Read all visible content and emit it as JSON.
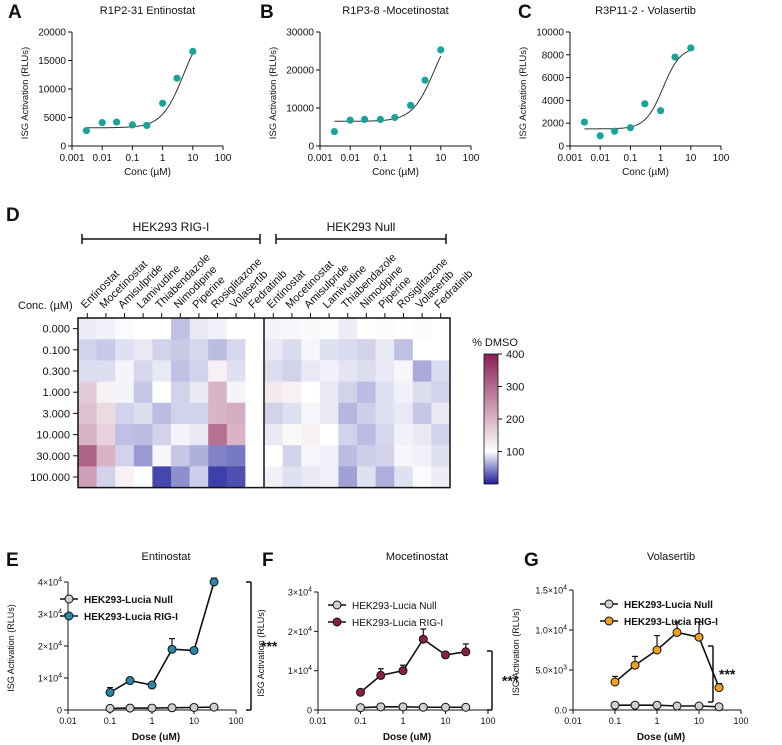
{
  "chart_data": [
    {
      "id": "A",
      "panel_letter": "A",
      "type": "scatter",
      "title": "R1P2-31 Entinostat",
      "xlabel": "Conc (µM)",
      "ylabel": "ISG Activation (RLUs)",
      "xscale": "log",
      "xlim": [
        0.001,
        100
      ],
      "ylim": [
        0,
        20000
      ],
      "xticks": [
        0.001,
        0.01,
        0.1,
        1,
        10,
        100
      ],
      "xtick_labels": [
        "0.001",
        "0.01",
        "0.1",
        "1",
        "10",
        "100"
      ],
      "yticks": [
        0,
        5000,
        10000,
        15000,
        20000
      ],
      "ytick_labels": [
        "0",
        "5000",
        "10000",
        "15000",
        "20000"
      ],
      "point_color": "#1aa39a",
      "fit": "sigmoid",
      "x": [
        0.003,
        0.01,
        0.03,
        0.1,
        0.3,
        1,
        3,
        10
      ],
      "y": [
        2700,
        4100,
        4200,
        3700,
        3600,
        7500,
        11900,
        16600
      ],
      "fit_params": {
        "bottom": 3200,
        "top": 22000,
        "ec50": 5,
        "hill": 1.2
      }
    },
    {
      "id": "B",
      "panel_letter": "B",
      "type": "scatter",
      "title": "R1P3-8 -Mocetinostat",
      "xlabel": "Conc (µM)",
      "ylabel": "ISG Activation (RLUs)",
      "xscale": "log",
      "xlim": [
        0.001,
        100
      ],
      "ylim": [
        0,
        30000
      ],
      "xticks": [
        0.001,
        0.01,
        0.1,
        1,
        10,
        100
      ],
      "xtick_labels": [
        "0.001",
        "0.01",
        "0.1",
        "1",
        "10",
        "100"
      ],
      "yticks": [
        0,
        10000,
        20000,
        30000
      ],
      "ytick_labels": [
        "0",
        "10000",
        "20000",
        "30000"
      ],
      "point_color": "#1aa39a",
      "fit": "sigmoid",
      "x": [
        0.003,
        0.01,
        0.03,
        0.1,
        0.3,
        1,
        3,
        10
      ],
      "y": [
        3800,
        6800,
        7000,
        7000,
        7500,
        10700,
        17300,
        25300
      ],
      "fit_params": {
        "bottom": 6500,
        "top": 33000,
        "ec50": 6,
        "hill": 1.2
      }
    },
    {
      "id": "C",
      "panel_letter": "C",
      "type": "scatter",
      "title": "R3P11-2 - Volasertib",
      "xlabel": "Conc (µM)",
      "ylabel": "ISG Activation (RLUs)",
      "xscale": "log",
      "xlim": [
        0.001,
        100
      ],
      "ylim": [
        0,
        10000
      ],
      "xticks": [
        0.001,
        0.01,
        0.1,
        1,
        10,
        100
      ],
      "xtick_labels": [
        "0.001",
        "0.01",
        "0.1",
        "1",
        "10",
        "100"
      ],
      "yticks": [
        0,
        2000,
        4000,
        6000,
        8000,
        10000
      ],
      "ytick_labels": [
        "0",
        "2000",
        "4000",
        "6000",
        "8000",
        "10000"
      ],
      "point_color": "#1aa39a",
      "fit": "sigmoid",
      "x": [
        0.003,
        0.01,
        0.03,
        0.1,
        0.3,
        1,
        3,
        10
      ],
      "y": [
        2100,
        900,
        1300,
        1600,
        3700,
        3100,
        7800,
        8600
      ],
      "fit_params": {
        "bottom": 1500,
        "top": 8700,
        "ec50": 1.2,
        "hill": 1.5
      }
    },
    {
      "id": "D",
      "panel_letter": "D",
      "type": "heatmap",
      "group_left": "HEK293 RIG-I",
      "group_right": "HEK293 Null",
      "row_title": "Conc. (µM)",
      "rows": [
        "0.000",
        "0.100",
        "0.300",
        "1.000",
        "3.000",
        "10.000",
        "30.000",
        "100.000"
      ],
      "columns": [
        "Entinostat",
        "Mocetinostat",
        "Amisulpride",
        "Lamivudine",
        "Thiabendazole",
        "Nimodipine",
        "Piperine",
        "Rosiglitazone",
        "Volasertib",
        "Fedratinib"
      ],
      "colorbar_title": "% DMSO",
      "colorbar_ticks": [
        400,
        300,
        200,
        100
      ],
      "colorbar_range": [
        0,
        400
      ],
      "color_low": "#1c1e9a",
      "color_mid": "#ffffff",
      "color_high": "#8c1f55",
      "values_rig_i": [
        [
          92,
          94,
          98,
          100,
          100,
          72,
          90,
          94,
          100,
          100
        ],
        [
          80,
          76,
          86,
          90,
          80,
          76,
          82,
          70,
          82,
          100
        ],
        [
          85,
          85,
          95,
          82,
          90,
          72,
          80,
          120,
          86,
          100
        ],
        [
          170,
          120,
          95,
          75,
          100,
          80,
          90,
          200,
          95,
          100
        ],
        [
          180,
          150,
          80,
          85,
          70,
          80,
          80,
          200,
          210,
          100
        ],
        [
          200,
          160,
          72,
          70,
          80,
          95,
          90,
          290,
          200,
          100
        ],
        [
          310,
          200,
          80,
          55,
          96,
          75,
          65,
          45,
          40,
          100
        ],
        [
          230,
          80,
          120,
          100,
          18,
          50,
          78,
          15,
          22,
          100
        ]
      ],
      "values_null": [
        [
          95,
          96,
          110,
          98,
          92,
          100,
          98,
          100,
          98,
          100
        ],
        [
          90,
          84,
          96,
          86,
          84,
          80,
          90,
          72,
          100,
          100
        ],
        [
          85,
          80,
          90,
          94,
          88,
          85,
          90,
          96,
          62,
          84
        ],
        [
          130,
          120,
          100,
          90,
          80,
          70,
          86,
          94,
          85,
          80
        ],
        [
          80,
          86,
          96,
          90,
          68,
          78,
          86,
          90,
          75,
          90
        ],
        [
          90,
          110,
          120,
          100,
          80,
          70,
          82,
          94,
          90,
          80
        ],
        [
          100,
          80,
          96,
          94,
          70,
          78,
          80,
          96,
          94,
          86
        ],
        [
          94,
          86,
          90,
          94,
          58,
          86,
          64,
          86,
          98,
          92
        ]
      ]
    },
    {
      "id": "E",
      "panel_letter": "E",
      "type": "line",
      "title": "Entinostat",
      "xlabel": "Dose (uM)",
      "ylabel": "ISG Activation (RLUs)",
      "xscale": "log",
      "xlim": [
        0.01,
        100
      ],
      "ylim": [
        0,
        40000
      ],
      "xticks": [
        0.01,
        0.1,
        1,
        10,
        100
      ],
      "xtick_labels": [
        "0.01",
        "0.1",
        "1",
        "10",
        "100"
      ],
      "yticks": [
        0,
        10000,
        20000,
        30000,
        40000
      ],
      "ytick_labels": [
        {
          "mant": "0",
          "exp": ""
        },
        {
          "mant": "1×10",
          "exp": "4"
        },
        {
          "mant": "2×10",
          "exp": "4"
        },
        {
          "mant": "3×10",
          "exp": "4"
        },
        {
          "mant": "4×10",
          "exp": "4"
        }
      ],
      "x": [
        0.1,
        0.3,
        1,
        3,
        10,
        30
      ],
      "series": [
        {
          "name": "HEK293-Lucia Null",
          "color": "#cfcfcf",
          "values": [
            500,
            600,
            600,
            700,
            800,
            900
          ],
          "errors": [
            200,
            200,
            200,
            200,
            200,
            200
          ]
        },
        {
          "name": "HEK293-Lucia RIG-I",
          "color": "#2a85a8",
          "values": [
            5500,
            9200,
            7800,
            19000,
            18600,
            40000
          ],
          "errors": [
            1500,
            600,
            800,
            3300,
            800,
            1200
          ]
        }
      ],
      "significance": "***",
      "bracket_y": [
        0,
        40000
      ]
    },
    {
      "id": "F",
      "panel_letter": "F",
      "type": "line",
      "title": "Mocetinostat",
      "xlabel": "Dose (uM)",
      "ylabel": "ISG Activation (RLUs)",
      "xscale": "log",
      "xlim": [
        0.01,
        100
      ],
      "ylim": [
        0,
        30000
      ],
      "xticks": [
        0.01,
        0.1,
        1,
        10,
        100
      ],
      "xtick_labels": [
        "0.01",
        "0.1",
        "1",
        "10",
        "100"
      ],
      "yticks": [
        0,
        10000,
        20000,
        30000
      ],
      "ytick_labels": [
        {
          "mant": "0",
          "exp": ""
        },
        {
          "mant": "1×10",
          "exp": "4"
        },
        {
          "mant": "2×10",
          "exp": "4"
        },
        {
          "mant": "3×10",
          "exp": "4"
        }
      ],
      "x": [
        0.1,
        0.3,
        1,
        3,
        10,
        30
      ],
      "series": [
        {
          "name": "HEK293-Lucia Null",
          "color": "#cfcfcf",
          "values": [
            600,
            800,
            800,
            700,
            700,
            700
          ],
          "errors": [
            200,
            200,
            200,
            200,
            200,
            200
          ]
        },
        {
          "name": "HEK293-Lucia RIG-I",
          "color": "#8c1f44",
          "values": [
            4500,
            8800,
            10000,
            18000,
            14000,
            14800
          ],
          "errors": [
            300,
            1700,
            1400,
            2600,
            600,
            2000
          ]
        }
      ],
      "significance": "***",
      "bracket_y": [
        0,
        15000
      ]
    },
    {
      "id": "G",
      "panel_letter": "G",
      "type": "line",
      "title": "Volasertib",
      "xlabel": "Dose (uM)",
      "ylabel": "ISG Activation (RLUs)",
      "xscale": "log",
      "xlim": [
        0.01,
        100
      ],
      "ylim": [
        0,
        15000
      ],
      "xticks": [
        0.01,
        0.1,
        1,
        10,
        100
      ],
      "xtick_labels": [
        "0.01",
        "0.1",
        "1",
        "10",
        "100"
      ],
      "yticks": [
        0,
        5000,
        10000,
        15000
      ],
      "ytick_labels": [
        {
          "mant": "0.0",
          "exp": ""
        },
        {
          "mant": "5.0×10",
          "exp": "3"
        },
        {
          "mant": "1.0×10",
          "exp": "4"
        },
        {
          "mant": "1.5×10",
          "exp": "4"
        }
      ],
      "x": [
        0.1,
        0.3,
        1,
        3,
        10,
        30
      ],
      "series": [
        {
          "name": "HEK293-Lucia Null",
          "color": "#cfcfcf",
          "values": [
            600,
            600,
            600,
            500,
            500,
            400
          ],
          "errors": [
            100,
            100,
            100,
            100,
            100,
            100
          ]
        },
        {
          "name": "HEK293-Lucia RIG-I",
          "color": "#f0a020",
          "values": [
            3500,
            5600,
            7500,
            9700,
            9100,
            2800
          ],
          "errors": [
            700,
            1100,
            1800,
            1300,
            1900,
            500
          ]
        }
      ],
      "significance": "***",
      "bracket_y": [
        1000,
        8000
      ]
    }
  ]
}
